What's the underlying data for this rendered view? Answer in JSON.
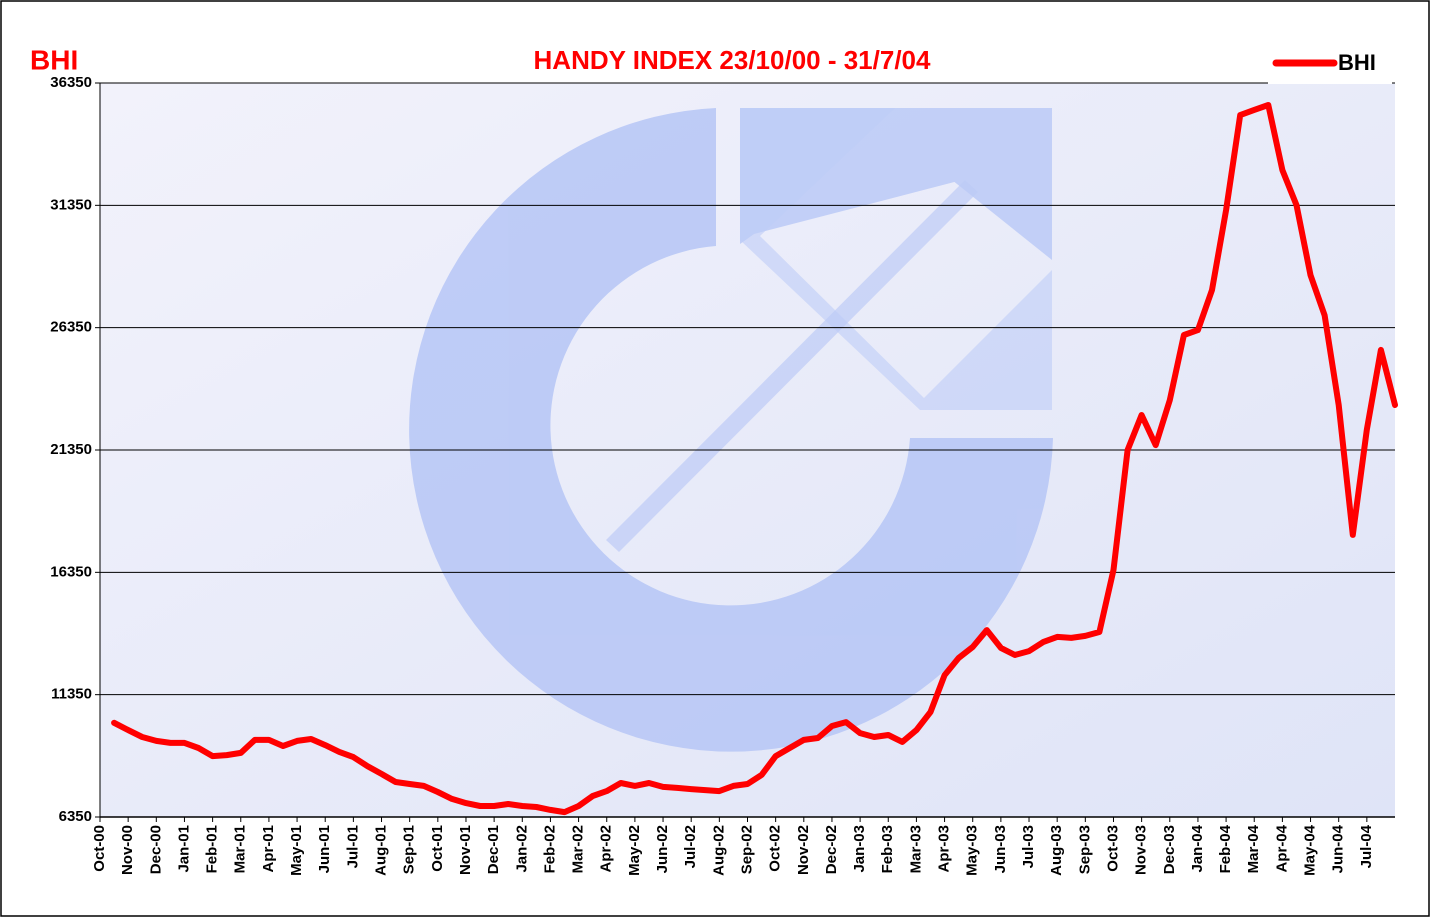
{
  "chart_data": {
    "type": "line",
    "title": "HANDY INDEX 23/10/00 - 31/7/04",
    "corner_label": "BHI",
    "categories": [
      "Oct-00",
      null,
      "Nov-00",
      null,
      "Dec-00",
      null,
      "Jan-01",
      null,
      "Feb-01",
      null,
      "Mar-01",
      null,
      "Apr-01",
      null,
      "May-01",
      null,
      "Jun-01",
      null,
      "Jul-01",
      null,
      "Aug-01",
      null,
      "Sep-01",
      null,
      "Oct-01",
      null,
      "Nov-01",
      null,
      "Dec-01",
      null,
      "Jan-02",
      null,
      "Feb-02",
      null,
      "Mar-02",
      null,
      "Apr-02",
      null,
      "May-02",
      null,
      "Jun-02",
      null,
      "Jul-02",
      null,
      "Aug-02",
      null,
      "Sep-02",
      null,
      "Oct-02",
      null,
      "Nov-02",
      null,
      "Dec-02",
      null,
      "Jan-03",
      null,
      "Feb-03",
      null,
      "Mar-03",
      null,
      "Apr-03",
      null,
      "May-03",
      null,
      "Jun-03",
      null,
      "Jul-03",
      null,
      "Aug-03",
      null,
      "Sep-03",
      null,
      "Oct-03",
      null,
      "Nov-03",
      null,
      "Dec-03",
      null,
      "Jan-04",
      null,
      "Feb-04",
      null,
      "Mar-04",
      null,
      "Apr-04",
      null,
      "May-04",
      null,
      "Jun-04",
      null,
      "Jul-04",
      null,
      null
    ],
    "series": [
      {
        "name": "BHI",
        "color": "#ff0000",
        "values": [
          null,
          10200,
          9900,
          9620,
          9460,
          9380,
          9380,
          9170,
          8840,
          8880,
          8970,
          9500,
          9500,
          9250,
          9460,
          9540,
          9290,
          9010,
          8800,
          8430,
          8110,
          7780,
          7700,
          7620,
          7370,
          7090,
          6920,
          6800,
          6800,
          6880,
          6800,
          6760,
          6640,
          6550,
          6800,
          7210,
          7410,
          7740,
          7620,
          7740,
          7580,
          7540,
          7490,
          7450,
          7410,
          7620,
          7700,
          8070,
          8840,
          9170,
          9500,
          9580,
          10070,
          10230,
          9780,
          9620,
          9700,
          9420,
          9900,
          10640,
          12150,
          12850,
          13300,
          13990,
          13260,
          12970,
          13130,
          13500,
          13710,
          13670,
          13750,
          13910,
          16450,
          21350,
          22780,
          21550,
          23390,
          26050,
          26250,
          27890,
          31160,
          35040,
          35250,
          35450,
          32790,
          31360,
          28500,
          26860,
          23190,
          17880,
          22170,
          25440,
          23190
        ]
      }
    ],
    "ylim": [
      6350,
      36350
    ],
    "yticks": [
      6350,
      11350,
      16350,
      21350,
      26350,
      31350,
      36350
    ],
    "grid": true,
    "legend": "top-right"
  }
}
